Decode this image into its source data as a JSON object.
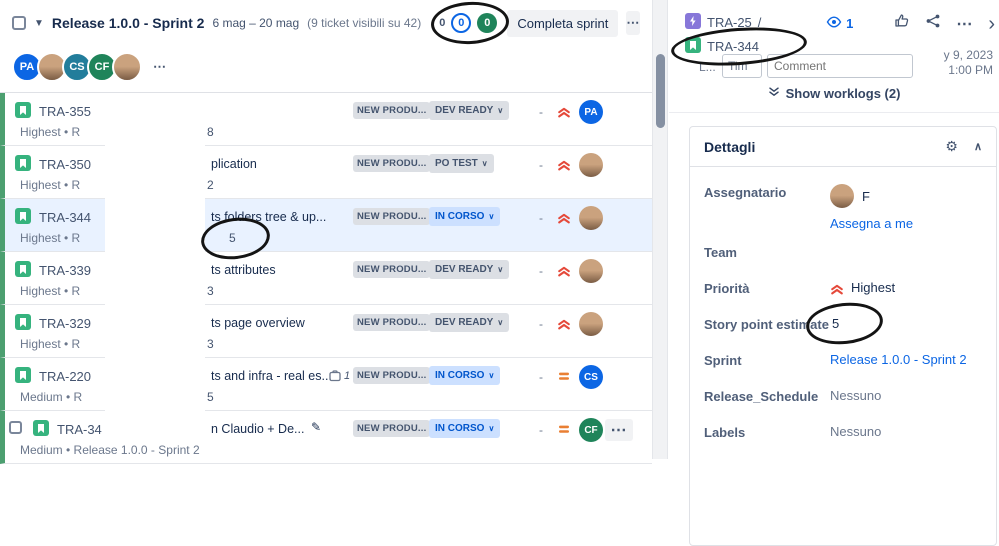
{
  "ui": {
    "dash": "-"
  },
  "sprint_header": {
    "title": "Release 1.0.0 - Sprint 2",
    "dates": "6 mag – 20 mag",
    "visible_count": "(9 ticket visibili su 42)",
    "counts": {
      "todo": "0",
      "in_progress": "0",
      "done": "0"
    },
    "complete_button": "Completa sprint"
  },
  "avatar_bar": {
    "avatars": [
      {
        "initials": "PA",
        "color": "#0C66E4"
      },
      {
        "photo": true
      },
      {
        "initials": "CS",
        "color": "#227D9B"
      },
      {
        "initials": "CF",
        "color": "#1F845A"
      },
      {
        "photo": true
      }
    ]
  },
  "issues": [
    {
      "key": "TRA-355",
      "summary": "",
      "sub": "Highest • R",
      "points": "8",
      "epic": "NEW PRODU...",
      "status": "DEV READY",
      "status_style": "default",
      "priority": "highest",
      "assignee": {
        "initials": "PA",
        "color": "#0C66E4"
      }
    },
    {
      "key": "TRA-350",
      "summary": "plication",
      "sub": "Highest • R",
      "points": "2",
      "epic": "NEW PRODU...",
      "status": "PO TEST",
      "status_style": "default",
      "priority": "highest",
      "assignee": {
        "photo": true
      }
    },
    {
      "key": "TRA-344",
      "summary": "ts folders tree & up...",
      "sub": "Highest • R",
      "points": "5",
      "epic": "NEW PRODU...",
      "status": "IN CORSO",
      "status_style": "inprogress",
      "priority": "highest",
      "assignee": {
        "photo": true
      },
      "selected": true,
      "circled": true
    },
    {
      "key": "TRA-339",
      "summary": "ts attributes",
      "sub": "Highest • R",
      "points": "3",
      "epic": "NEW PRODU...",
      "status": "DEV READY",
      "status_style": "default",
      "priority": "highest",
      "assignee": {
        "photo": true
      }
    },
    {
      "key": "TRA-329",
      "summary": "ts page overview",
      "sub": "Highest • R",
      "points": "3",
      "epic": "NEW PRODU...",
      "status": "DEV READY",
      "status_style": "default",
      "priority": "highest",
      "assignee": {
        "photo": true
      }
    },
    {
      "key": "TRA-220",
      "summary": "ts and infra - real es...",
      "sub": "Medium • R",
      "points": "5",
      "badge": "1",
      "epic": "NEW PRODU...",
      "status": "IN CORSO",
      "status_style": "inprogress",
      "priority": "medium",
      "assignee": {
        "initials": "CS",
        "color": "#0C66E4"
      }
    },
    {
      "key": "TRA-34",
      "summary": "n Claudio + De...",
      "sub": "Medium • Release 1.0.0 - Sprint 2",
      "points": "",
      "epic": "NEW PRODU...",
      "status": "IN CORSO",
      "status_style": "inprogress",
      "priority": "medium",
      "assignee": {
        "initials": "CF",
        "color": "#1F845A"
      },
      "checkbox": true,
      "pencil": true,
      "more": true
    }
  ],
  "right_panel": {
    "breadcrumb": {
      "parent": "TRA-25",
      "separator": "/",
      "current": "TRA-344"
    },
    "watch_count": "1",
    "worklog_form": {
      "fragment": "L...",
      "time_value": "Tim",
      "comment_placeholder": "Comment",
      "date_line1": "y 9, 2023",
      "date_line2": "1:00 PM"
    },
    "show_worklogs": "Show worklogs (2)",
    "details": {
      "title": "Dettagli",
      "fields": [
        {
          "label": "Assegnatario",
          "type": "user",
          "name": "F",
          "action": "Assegna a me"
        },
        {
          "label": "Team",
          "type": "empty",
          "value": ""
        },
        {
          "label": "Priorità",
          "type": "priority",
          "value": "Highest"
        },
        {
          "label": "Story point estimate",
          "type": "text",
          "value": "5",
          "circled": true
        },
        {
          "label": "Sprint",
          "type": "link",
          "value": "Release 1.0.0 - Sprint 2"
        },
        {
          "label": "Release_Schedule",
          "type": "muted",
          "value": "Nessuno"
        },
        {
          "label": "Labels",
          "type": "muted",
          "value": "Nessuno"
        }
      ]
    }
  }
}
